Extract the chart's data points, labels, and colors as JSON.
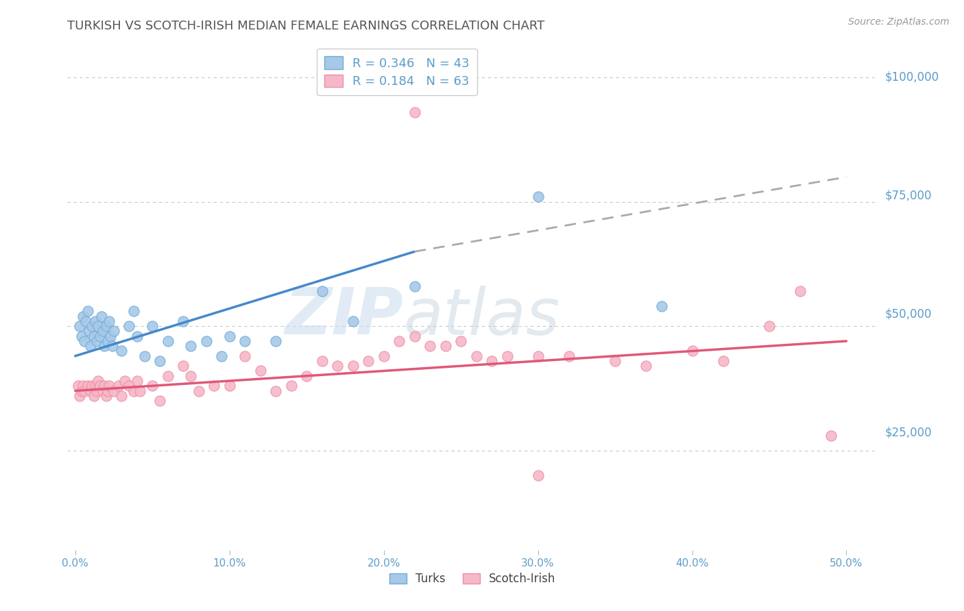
{
  "title": "TURKISH VS SCOTCH-IRISH MEDIAN FEMALE EARNINGS CORRELATION CHART",
  "source": "Source: ZipAtlas.com",
  "xlabel_values": [
    0.0,
    10.0,
    20.0,
    30.0,
    40.0,
    50.0
  ],
  "ylabel_ticks": [
    0,
    25000,
    50000,
    75000,
    100000
  ],
  "ylabel_labels": [
    "",
    "$25,000",
    "$50,000",
    "$75,000",
    "$100,000"
  ],
  "xlim": [
    -0.5,
    52.0
  ],
  "ylim": [
    5000,
    107000
  ],
  "blue_r": "0.346",
  "blue_n": "43",
  "pink_r": "0.184",
  "pink_n": "63",
  "blue_color": "#a8c8e8",
  "pink_color": "#f5b8c8",
  "blue_edge_color": "#6aaed6",
  "pink_edge_color": "#f08ca5",
  "axis_label_color": "#5b9dc9",
  "grid_color": "#c8c8c8",
  "title_color": "#555555",
  "background_color": "#ffffff",
  "blue_line_x0": 0,
  "blue_line_y0": 44000,
  "blue_line_x1": 22,
  "blue_line_y1": 65000,
  "blue_dash_x0": 22,
  "blue_dash_y0": 65000,
  "blue_dash_x1": 50,
  "blue_dash_y1": 80000,
  "pink_line_x0": 0,
  "pink_line_y0": 37000,
  "pink_line_x1": 50,
  "pink_line_y1": 47000,
  "blue_dots_x": [
    0.3,
    0.4,
    0.5,
    0.6,
    0.7,
    0.8,
    0.9,
    1.0,
    1.1,
    1.2,
    1.3,
    1.4,
    1.5,
    1.6,
    1.7,
    1.8,
    1.9,
    2.0,
    2.1,
    2.2,
    2.3,
    2.4,
    2.5,
    3.0,
    3.5,
    3.8,
    4.0,
    4.5,
    5.0,
    5.5,
    6.0,
    7.0,
    7.5,
    8.5,
    9.5,
    10.0,
    11.0,
    13.0,
    16.0,
    18.0,
    22.0,
    30.0,
    38.0
  ],
  "blue_dots_y": [
    50000,
    48000,
    52000,
    47000,
    51000,
    53000,
    49000,
    46000,
    50000,
    48000,
    51000,
    47000,
    50000,
    48000,
    52000,
    49000,
    46000,
    50000,
    47000,
    51000,
    48000,
    46000,
    49000,
    45000,
    50000,
    53000,
    48000,
    44000,
    50000,
    43000,
    47000,
    51000,
    46000,
    47000,
    44000,
    48000,
    47000,
    47000,
    57000,
    51000,
    58000,
    76000,
    54000
  ],
  "pink_dots_x": [
    0.2,
    0.3,
    0.4,
    0.5,
    0.6,
    0.8,
    1.0,
    1.1,
    1.2,
    1.3,
    1.4,
    1.5,
    1.6,
    1.8,
    1.9,
    2.0,
    2.1,
    2.2,
    2.5,
    2.8,
    3.0,
    3.2,
    3.5,
    3.8,
    4.0,
    4.2,
    5.0,
    5.5,
    6.0,
    7.0,
    7.5,
    8.0,
    9.0,
    10.0,
    11.0,
    12.0,
    13.0,
    14.0,
    15.0,
    16.0,
    17.0,
    18.0,
    19.0,
    20.0,
    21.0,
    22.0,
    23.0,
    24.0,
    25.0,
    26.0,
    27.0,
    28.0,
    30.0,
    32.0,
    35.0,
    37.0,
    40.0,
    42.0,
    45.0,
    47.0,
    49.0,
    22.0,
    30.0
  ],
  "pink_dots_y": [
    38000,
    36000,
    37000,
    38000,
    37000,
    38000,
    37000,
    38000,
    36000,
    38000,
    37000,
    39000,
    38000,
    37000,
    38000,
    36000,
    37000,
    38000,
    37000,
    38000,
    36000,
    39000,
    38000,
    37000,
    39000,
    37000,
    38000,
    35000,
    40000,
    42000,
    40000,
    37000,
    38000,
    38000,
    44000,
    41000,
    37000,
    38000,
    40000,
    43000,
    42000,
    42000,
    43000,
    44000,
    47000,
    48000,
    46000,
    46000,
    47000,
    44000,
    43000,
    44000,
    44000,
    44000,
    43000,
    42000,
    45000,
    43000,
    50000,
    57000,
    28000,
    93000,
    20000
  ],
  "watermark_text": "ZIP",
  "watermark_text2": "atlas"
}
